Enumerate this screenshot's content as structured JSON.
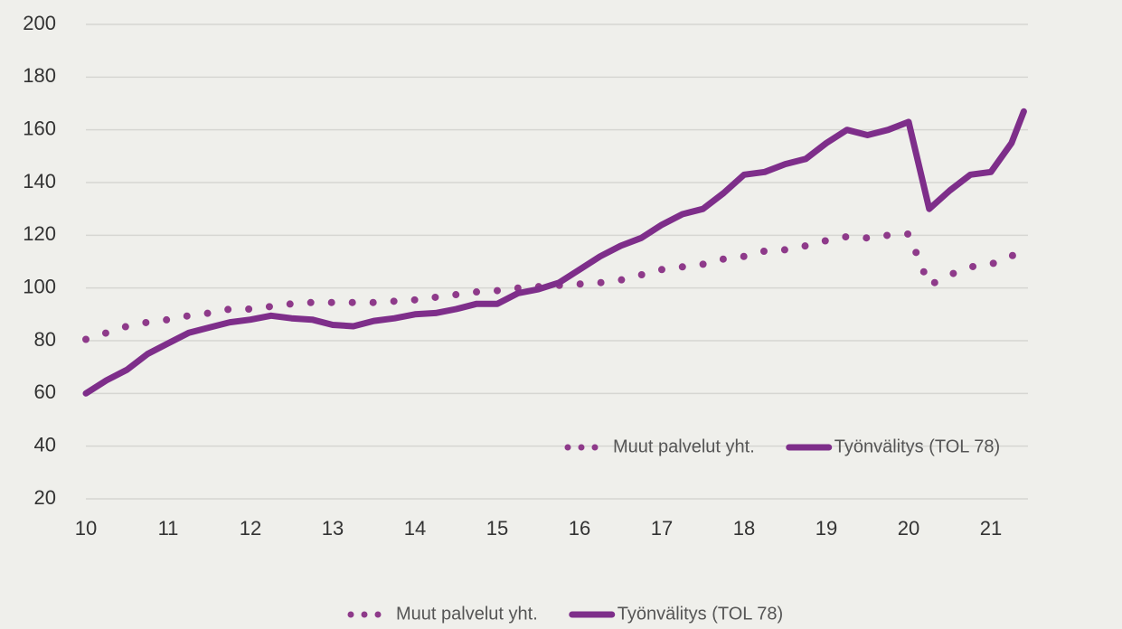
{
  "chart_data": {
    "type": "line",
    "x": [
      10,
      10.25,
      10.5,
      10.75,
      11,
      11.25,
      11.5,
      11.75,
      12,
      12.25,
      12.5,
      12.75,
      13,
      13.25,
      13.5,
      13.75,
      14,
      14.25,
      14.5,
      14.75,
      15,
      15.25,
      15.5,
      15.75,
      16,
      16.25,
      16.5,
      16.75,
      17,
      17.25,
      17.5,
      17.75,
      18,
      18.25,
      18.5,
      18.75,
      19,
      19.25,
      19.5,
      19.75,
      20,
      20.25,
      20.5,
      20.75,
      21,
      21.25,
      21.4
    ],
    "series": [
      {
        "name": "Muut palvelut yht.",
        "color": "#8e3a8a",
        "style": "dotted",
        "values": [
          80.5,
          83,
          85.5,
          87,
          88,
          89.5,
          90.5,
          92,
          92,
          93,
          94,
          94.5,
          94.5,
          94.5,
          94.5,
          95,
          95.5,
          96.5,
          97.5,
          98.5,
          99,
          100,
          100.5,
          101,
          101.5,
          102,
          103,
          105,
          107,
          108,
          109,
          111,
          112,
          114,
          114.5,
          116,
          118,
          119.5,
          119,
          120,
          120.5,
          101,
          105,
          108,
          109,
          112,
          116
        ]
      },
      {
        "name": "Työnvälitys (TOL 78)",
        "color": "#7e2e8a",
        "style": "solid",
        "values": [
          60,
          65,
          69,
          75,
          79,
          83,
          85,
          87,
          88,
          89.5,
          88.5,
          88,
          86,
          85.5,
          87.5,
          88.5,
          90,
          90.5,
          92,
          94,
          94,
          98,
          99.5,
          102,
          107,
          112,
          116,
          119,
          124,
          128,
          130,
          136,
          143,
          144,
          147,
          149,
          155,
          160,
          158,
          160,
          163,
          130,
          137,
          143,
          144,
          155,
          167
        ]
      }
    ],
    "xlim": [
      10,
      21.45
    ],
    "xticks": [
      10,
      11,
      12,
      13,
      14,
      15,
      16,
      17,
      18,
      19,
      20,
      21
    ],
    "ylim": [
      20,
      200
    ],
    "yticks": [
      20,
      40,
      60,
      80,
      100,
      120,
      140,
      160,
      180,
      200
    ],
    "grid": true
  }
}
